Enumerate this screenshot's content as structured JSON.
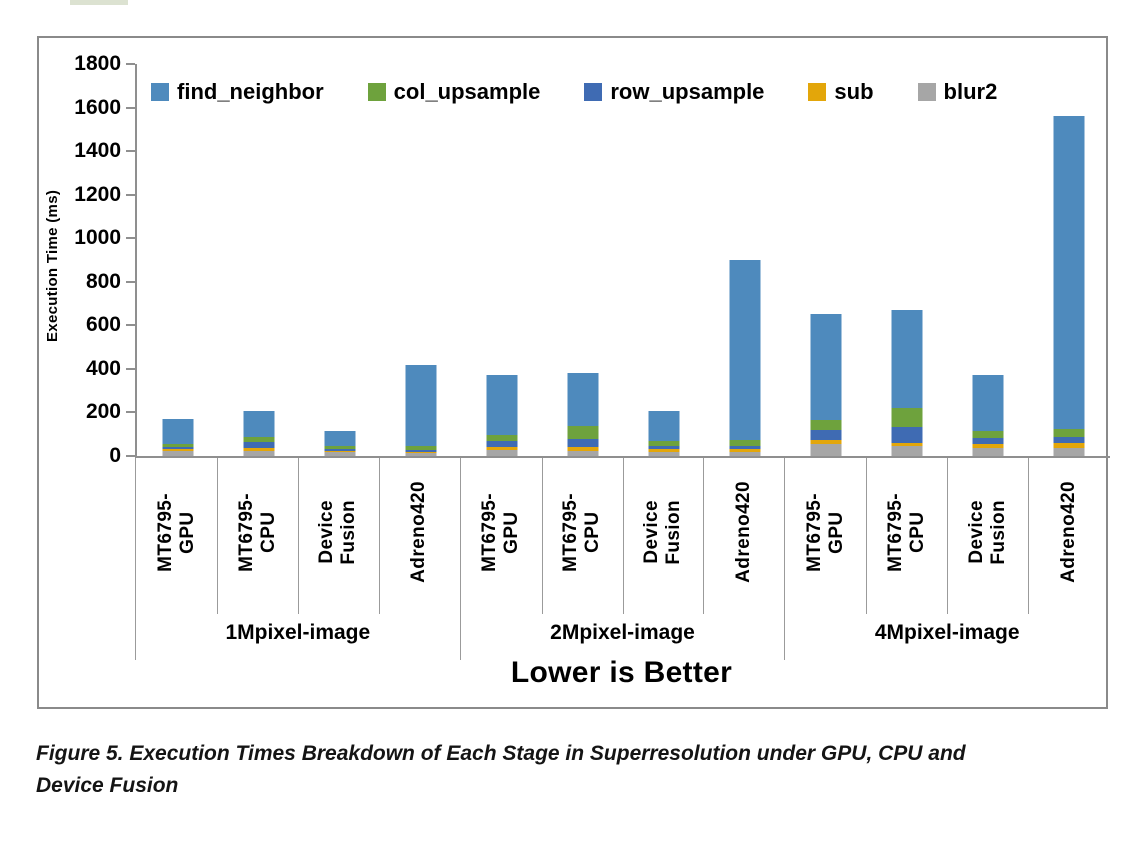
{
  "figure": {
    "caption": "Figure 5. Execution Times Breakdown of Each Stage in Superresolution under GPU, CPU and\nDevice Fusion"
  },
  "chart_data": {
    "type": "bar",
    "stacked": true,
    "title": "",
    "xlabel": "Lower is Better",
    "ylabel": "Execution Time (ms)",
    "units": "ms",
    "ylim": [
      0,
      1800
    ],
    "ytick_step": 200,
    "yticks": [
      0,
      200,
      400,
      600,
      800,
      1000,
      1200,
      1400,
      1600,
      1800
    ],
    "grid": false,
    "legend_position": "top-inside",
    "groups": [
      "1Mpixel-image",
      "2Mpixel-image",
      "4Mpixel-image"
    ],
    "categories": [
      "MT6795-\nGPU",
      "MT6795-\nCPU",
      "Device\nFusion",
      "Adreno420"
    ],
    "stack_order_bottom_to_top": [
      "blur2",
      "sub",
      "row_upsample",
      "col_upsample",
      "find_neighbor"
    ],
    "series": [
      {
        "name": "find_neighbor",
        "color": "#4E8ABD",
        "values": [
          115,
          120,
          65,
          375,
          275,
          245,
          140,
          825,
          486,
          451,
          254,
          1436
        ]
      },
      {
        "name": "col_upsample",
        "color": "#6EA23D",
        "values": [
          15,
          24,
          14,
          18,
          27,
          60,
          20,
          28,
          46,
          90,
          35,
          38
        ]
      },
      {
        "name": "row_upsample",
        "color": "#3F6BB3",
        "values": [
          12,
          27,
          11,
          6,
          27,
          38,
          18,
          14,
          45,
          70,
          28,
          26
        ]
      },
      {
        "name": "sub",
        "color": "#E3A60A",
        "values": [
          5,
          12,
          5,
          5,
          13,
          15,
          10,
          12,
          18,
          15,
          15,
          22
        ]
      },
      {
        "name": "blur2",
        "color": "#A6A6A6",
        "values": [
          25,
          25,
          18,
          15,
          28,
          25,
          20,
          20,
          55,
          46,
          38,
          38
        ]
      }
    ],
    "bar_totals_approx": [
      172,
      208,
      113,
      419,
      370,
      383,
      208,
      899,
      650,
      672,
      370,
      1560
    ]
  }
}
